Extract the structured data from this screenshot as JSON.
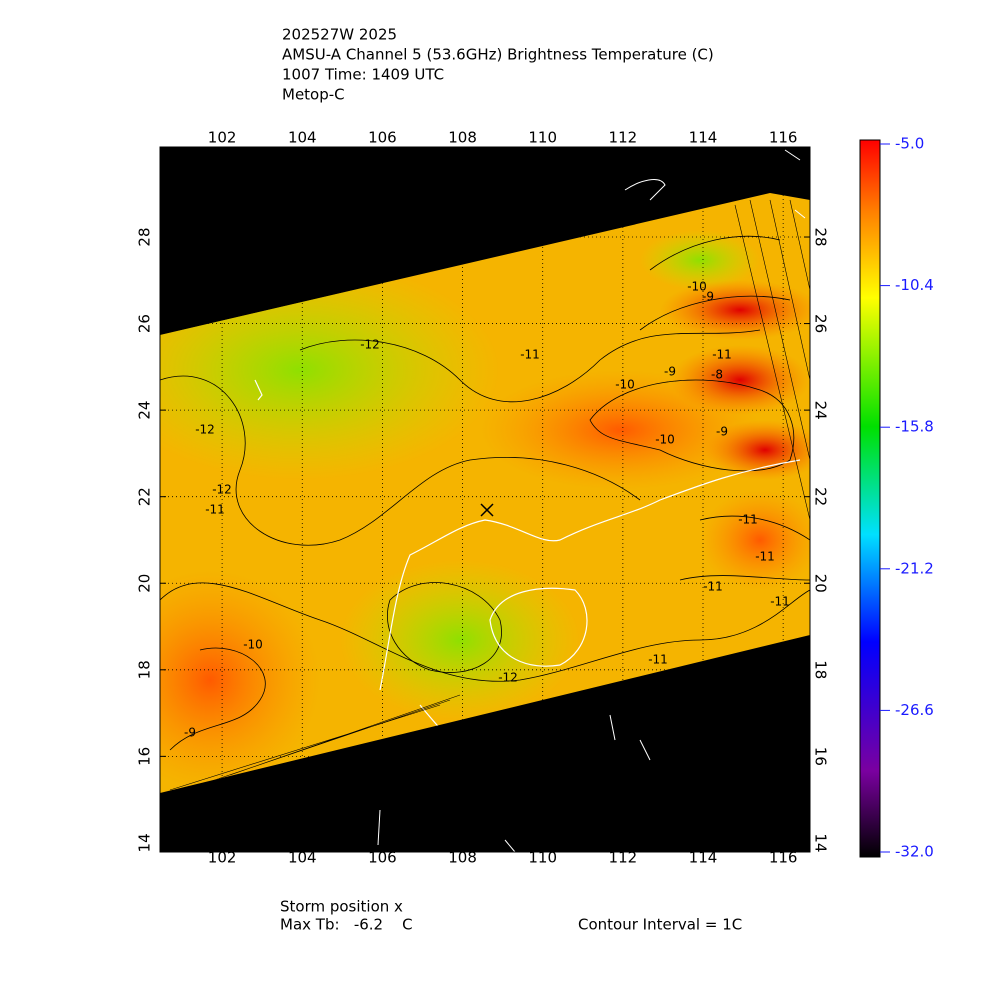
{
  "chart_data": {
    "type": "map",
    "title_lines": [
      "202527W 2025",
      "AMSU-A Channel 5 (53.6GHz) Brightness Temperature (C)",
      "1007 Time: 1409 UTC",
      "Metop-C"
    ],
    "xlim": [
      100.45,
      116.67
    ],
    "xticks": [
      102,
      104,
      106,
      108,
      110,
      112,
      114,
      116
    ],
    "ylim": [
      13.79,
      30.08
    ],
    "yticks": [
      14,
      16,
      18,
      20,
      22,
      24,
      26,
      28
    ],
    "grid": true,
    "colorbar": {
      "lim": [
        -32,
        -5
      ],
      "ticks": [
        {
          "value": -5,
          "label": "-5.0"
        },
        {
          "value": -10.4,
          "label": "-10.4"
        },
        {
          "value": -15.8,
          "label": "-15.8"
        },
        {
          "value": -21.2,
          "label": "-21.2"
        },
        {
          "value": -26.6,
          "label": "-26.6"
        },
        {
          "value": -32,
          "label": "-32.0"
        }
      ]
    },
    "contour_labels": [
      "-12",
      "-11",
      "-10",
      "-9",
      "-8",
      "-10",
      "-9",
      "-11",
      "-12",
      "-12",
      "-11",
      "-10",
      "-9",
      "-11",
      "-11",
      "-11",
      "-11",
      "-11",
      "-12",
      "-10",
      "-9"
    ],
    "footer": {
      "storm_position": "Storm position x",
      "max_tb": "Max Tb:   -6.2    C",
      "contour_interval": "Contour Interval = 1C"
    }
  }
}
